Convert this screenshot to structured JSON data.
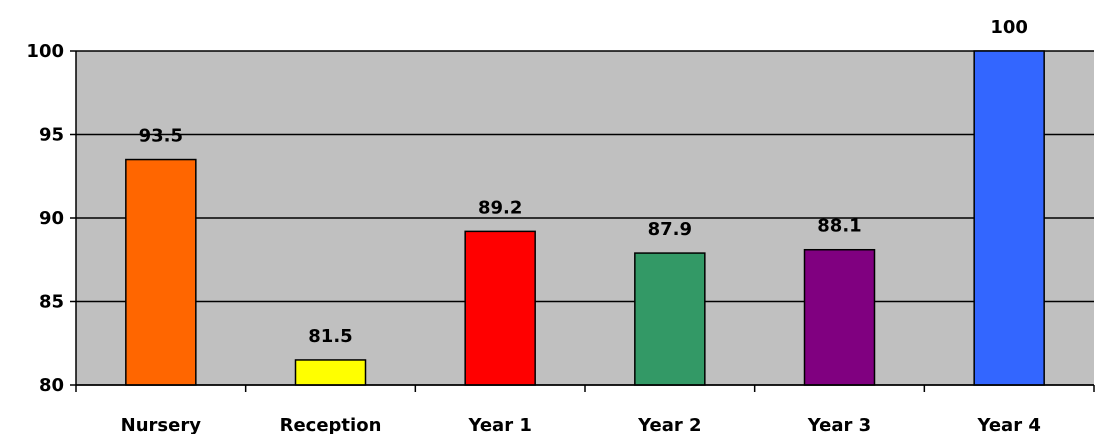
{
  "chart_data": {
    "type": "bar",
    "categories": [
      "Nursery",
      "Reception",
      "Year 1",
      "Year 2",
      "Year 3",
      "Year 4"
    ],
    "values": [
      93.5,
      81.5,
      89.2,
      87.9,
      88.1,
      100
    ],
    "data_labels": [
      "93.5",
      "81.5",
      "89.2",
      "87.9",
      "88.1",
      "100"
    ],
    "bar_colors": [
      "#ff6600",
      "#ffff00",
      "#ff0000",
      "#339966",
      "#800080",
      "#3366ff"
    ],
    "ylim": [
      80,
      100
    ],
    "yticks": [
      80,
      85,
      90,
      95,
      100
    ],
    "ytick_labels": [
      "80",
      "85",
      "90",
      "95",
      "100"
    ],
    "grid": true,
    "plot_background": "#c0c0c0",
    "title": "",
    "xlabel": "",
    "ylabel": ""
  }
}
